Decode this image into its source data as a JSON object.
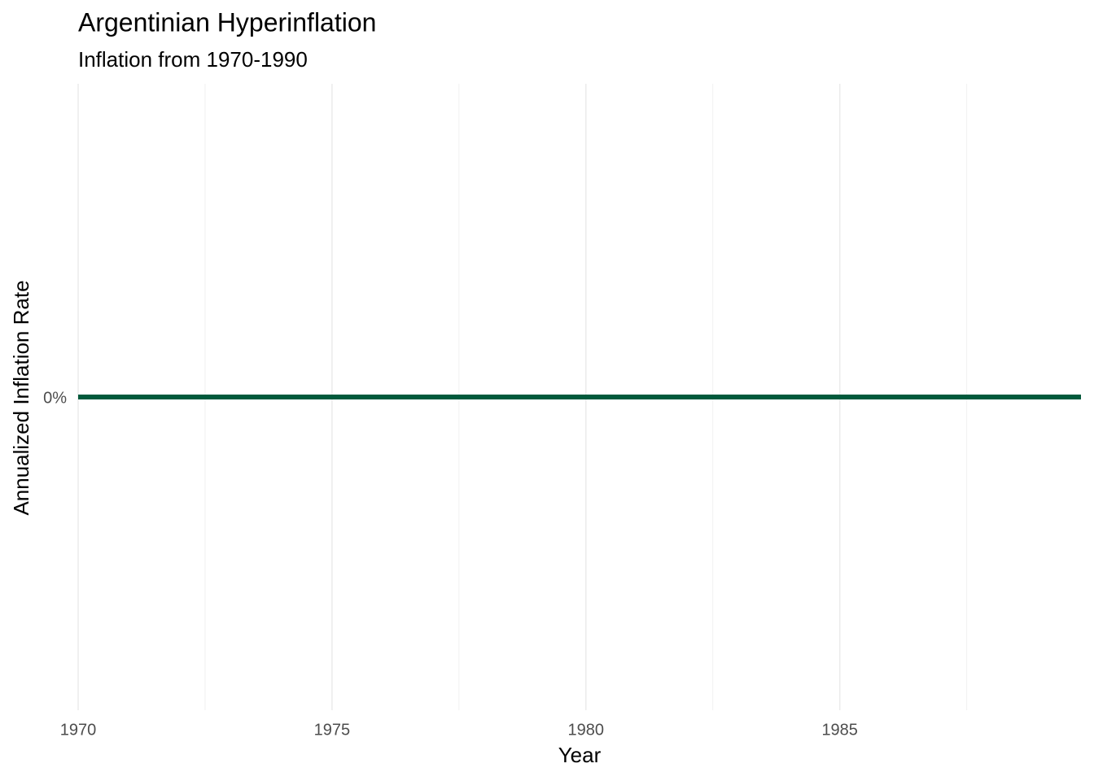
{
  "chart_data": {
    "type": "line",
    "title": "Argentinian Hyperinflation",
    "subtitle": "Inflation from 1970-1990",
    "x_label": "Year",
    "y_label": "Annualized Inflation Rate",
    "x": [
      1970,
      1989.75
    ],
    "values": [
      0,
      0
    ],
    "color": "#005a3c",
    "xlim": [
      1970,
      1989.75
    ],
    "xticks": [
      1970,
      1975,
      1980,
      1985
    ],
    "x_minor_ticks": [
      1972.5,
      1977.5,
      1982.5,
      1987.5
    ],
    "ylim": [
      -1,
      1
    ],
    "yticks": [
      {
        "value": 0,
        "label": "0%"
      }
    ],
    "grid": true
  }
}
